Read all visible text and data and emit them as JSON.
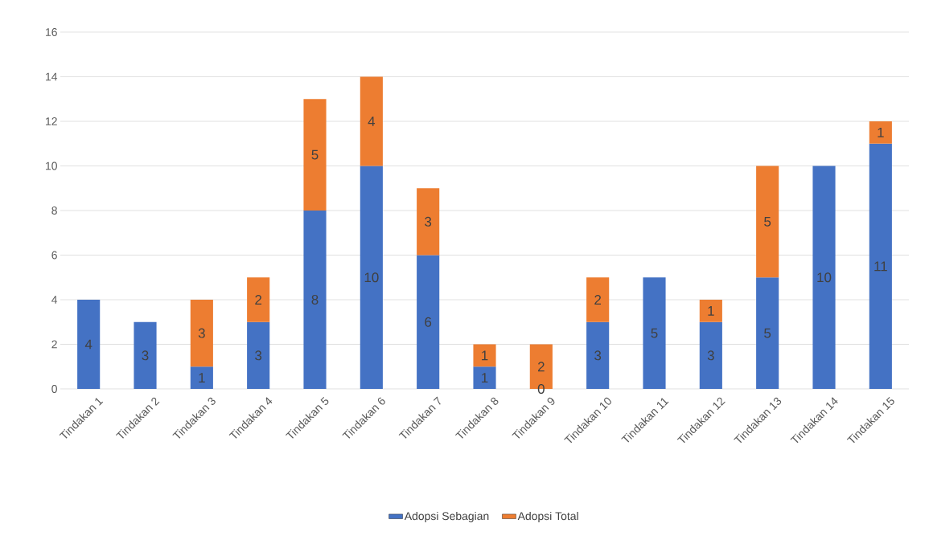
{
  "chart_data": {
    "type": "bar",
    "stacked": true,
    "categories": [
      "Tindakan 1",
      "Tindakan 2",
      "Tindakan 3",
      "Tindakan 4",
      "Tindakan 5",
      "Tindakan 6",
      "Tindakan 7",
      "Tindakan 8",
      "Tindakan 9",
      "Tindakan 10",
      "Tindakan 11",
      "Tindakan 12",
      "Tindakan 13",
      "Tindakan 14",
      "Tindakan 15"
    ],
    "series": [
      {
        "name": "Adopsi Sebagian",
        "color": "#4472c4",
        "values": [
          4,
          3,
          1,
          3,
          8,
          10,
          6,
          1,
          0,
          3,
          5,
          3,
          5,
          10,
          11
        ]
      },
      {
        "name": "Adopsi Total",
        "color": "#ed7d31",
        "values": [
          null,
          null,
          3,
          2,
          5,
          4,
          3,
          1,
          2,
          2,
          null,
          1,
          5,
          null,
          1
        ]
      }
    ],
    "ylim": [
      0,
      16
    ],
    "yticks": [
      0,
      2,
      4,
      6,
      8,
      10,
      12,
      14,
      16
    ],
    "grid": "y",
    "legend": "bottom",
    "data_labels": true
  }
}
